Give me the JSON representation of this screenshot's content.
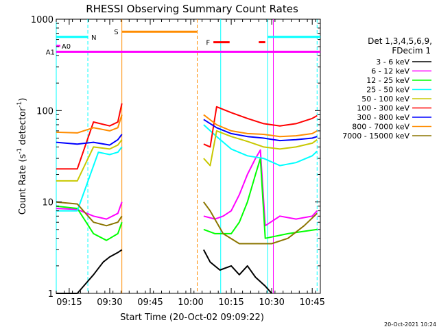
{
  "chart_data": {
    "type": "line",
    "title": "RHESSI Observing Summary Count Rates",
    "xlabel": "Start Time (20-Oct-02 09:09:22)",
    "ylabel_main": "Count Rate (s",
    "ylabel_sup1": "-1",
    "ylabel_mid": " detector",
    "ylabel_sup2": "-1",
    "ylabel_end": ")",
    "yscale": "log",
    "ylim": [
      1,
      1000
    ],
    "xlim_minutes": [
      9.17,
      10.8
    ],
    "x_ticks": [
      {
        "label": "09:15",
        "t": 9.25
      },
      {
        "label": "09:30",
        "t": 9.5
      },
      {
        "label": "09:45",
        "t": 9.75
      },
      {
        "label": "10:00",
        "t": 10.0
      },
      {
        "label": "10:15",
        "t": 10.25
      },
      {
        "label": "10:30",
        "t": 10.5
      },
      {
        "label": "10:45",
        "t": 10.75
      }
    ],
    "y_ticks": [
      {
        "label": "1",
        "v": 1
      },
      {
        "label": "10",
        "v": 10
      },
      {
        "label": "100",
        "v": 100
      },
      {
        "label": "1000",
        "v": 1000
      }
    ],
    "legend_header": [
      "Det 1,3,4,5,6,9,",
      "FDecim 1"
    ],
    "legend_placement": "right",
    "series": [
      {
        "name": "3 - 6 keV",
        "color": "#000000",
        "segments": [
          [
            [
              9.17,
              1.0
            ],
            [
              9.3,
              1.0
            ],
            [
              9.4,
              1.6
            ],
            [
              9.46,
              2.2
            ],
            [
              9.5,
              2.5
            ],
            [
              9.55,
              2.8
            ],
            [
              9.575,
              3.0
            ]
          ],
          [
            [
              10.08,
              3.0
            ],
            [
              10.12,
              2.2
            ],
            [
              10.18,
              1.8
            ],
            [
              10.25,
              2.0
            ],
            [
              10.3,
              1.6
            ],
            [
              10.35,
              2.0
            ],
            [
              10.4,
              1.5
            ],
            [
              10.46,
              1.2
            ],
            [
              10.5,
              1.0
            ]
          ]
        ]
      },
      {
        "name": "6 - 12 keV",
        "color": "#ff00ff",
        "segments": [
          [
            [
              9.17,
              8.5
            ],
            [
              9.3,
              8.3
            ],
            [
              9.4,
              7.0
            ],
            [
              9.48,
              6.5
            ],
            [
              9.55,
              7.5
            ],
            [
              9.575,
              10.0
            ]
          ],
          [
            [
              10.08,
              7.0
            ],
            [
              10.15,
              6.5
            ],
            [
              10.2,
              7.0
            ],
            [
              10.25,
              8.0
            ],
            [
              10.3,
              12.0
            ],
            [
              10.35,
              20.0
            ],
            [
              10.4,
              30.0
            ],
            [
              10.43,
              37.0
            ],
            [
              10.46,
              5.5
            ],
            [
              10.55,
              7.0
            ],
            [
              10.65,
              6.5
            ],
            [
              10.75,
              7.0
            ],
            [
              10.78,
              8.0
            ]
          ]
        ]
      },
      {
        "name": "12 - 25 keV",
        "color": "#00ff00",
        "segments": [
          [
            [
              9.17,
              9.0
            ],
            [
              9.3,
              8.5
            ],
            [
              9.4,
              4.5
            ],
            [
              9.48,
              3.8
            ],
            [
              9.55,
              4.5
            ],
            [
              9.575,
              6.0
            ]
          ],
          [
            [
              10.08,
              5.0
            ],
            [
              10.15,
              4.5
            ],
            [
              10.25,
              4.5
            ],
            [
              10.3,
              6.0
            ],
            [
              10.35,
              10.0
            ],
            [
              10.4,
              20.0
            ],
            [
              10.43,
              30.0
            ],
            [
              10.46,
              4.0
            ],
            [
              10.6,
              4.5
            ],
            [
              10.78,
              5.0
            ]
          ]
        ]
      },
      {
        "name": "25 - 50 keV",
        "color": "#00ffff",
        "segments": [
          [
            [
              9.17,
              8.0
            ],
            [
              9.3,
              8.0
            ],
            [
              9.43,
              35.0
            ],
            [
              9.5,
              33.0
            ],
            [
              9.55,
              35.0
            ],
            [
              9.575,
              40.0
            ]
          ],
          [
            [
              10.08,
              70.0
            ],
            [
              10.16,
              52.0
            ],
            [
              10.25,
              38.0
            ],
            [
              10.35,
              32.0
            ],
            [
              10.45,
              30.0
            ],
            [
              10.55,
              25.0
            ],
            [
              10.65,
              27.0
            ],
            [
              10.75,
              32.0
            ],
            [
              10.78,
              36.0
            ]
          ]
        ]
      },
      {
        "name": "50 - 100 keV",
        "color": "#c8c800",
        "segments": [
          [
            [
              9.17,
              17.0
            ],
            [
              9.3,
              17.0
            ],
            [
              9.4,
              40.0
            ],
            [
              9.5,
              38.0
            ],
            [
              9.55,
              42.0
            ],
            [
              9.575,
              48.0
            ]
          ],
          [
            [
              10.08,
              30.0
            ],
            [
              10.12,
              25.0
            ],
            [
              10.16,
              60.0
            ],
            [
              10.25,
              52.0
            ],
            [
              10.35,
              46.0
            ],
            [
              10.45,
              40.0
            ],
            [
              10.55,
              38.0
            ],
            [
              10.65,
              40.0
            ],
            [
              10.75,
              44.0
            ],
            [
              10.78,
              48.0
            ]
          ]
        ]
      },
      {
        "name": "100 - 300 keV",
        "color": "#ff0000",
        "segments": [
          [
            [
              9.17,
              23.0
            ],
            [
              9.3,
              23.0
            ],
            [
              9.4,
              75.0
            ],
            [
              9.5,
              68.0
            ],
            [
              9.55,
              75.0
            ],
            [
              9.575,
              120.0
            ]
          ],
          [
            [
              10.08,
              43.0
            ],
            [
              10.12,
              40.0
            ],
            [
              10.16,
              110.0
            ],
            [
              10.25,
              95.0
            ],
            [
              10.35,
              82.0
            ],
            [
              10.45,
              72.0
            ],
            [
              10.55,
              68.0
            ],
            [
              10.65,
              72.0
            ],
            [
              10.75,
              82.0
            ],
            [
              10.78,
              88.0
            ]
          ]
        ]
      },
      {
        "name": "300 - 800 keV",
        "color": "#0000ff",
        "segments": [
          [
            [
              9.17,
              45.0
            ],
            [
              9.3,
              43.0
            ],
            [
              9.4,
              45.0
            ],
            [
              9.5,
              42.0
            ],
            [
              9.55,
              48.0
            ],
            [
              9.575,
              55.0
            ]
          ],
          [
            [
              10.08,
              80.0
            ],
            [
              10.16,
              65.0
            ],
            [
              10.25,
              56.0
            ],
            [
              10.35,
              52.0
            ],
            [
              10.45,
              50.0
            ],
            [
              10.55,
              47.0
            ],
            [
              10.65,
              48.0
            ],
            [
              10.75,
              50.0
            ],
            [
              10.78,
              52.0
            ]
          ]
        ]
      },
      {
        "name": "800 - 7000 keV",
        "color": "#ff8c00",
        "segments": [
          [
            [
              9.17,
              58.0
            ],
            [
              9.3,
              57.0
            ],
            [
              9.4,
              65.0
            ],
            [
              9.5,
              60.0
            ],
            [
              9.55,
              65.0
            ],
            [
              9.575,
              90.0
            ]
          ],
          [
            [
              10.08,
              90.0
            ],
            [
              10.16,
              70.0
            ],
            [
              10.25,
              60.0
            ],
            [
              10.35,
              56.0
            ],
            [
              10.45,
              55.0
            ],
            [
              10.55,
              52.0
            ],
            [
              10.65,
              53.0
            ],
            [
              10.75,
              56.0
            ],
            [
              10.78,
              60.0
            ]
          ]
        ]
      },
      {
        "name": "7000 - 15000 keV",
        "color": "#8b7500",
        "segments": [
          [
            [
              9.17,
              10.0
            ],
            [
              9.3,
              9.5
            ],
            [
              9.4,
              6.0
            ],
            [
              9.48,
              5.5
            ],
            [
              9.55,
              6.0
            ],
            [
              9.575,
              7.0
            ]
          ],
          [
            [
              10.08,
              10.0
            ],
            [
              10.12,
              8.0
            ],
            [
              10.16,
              6.0
            ],
            [
              10.2,
              4.5
            ],
            [
              10.3,
              3.5
            ],
            [
              10.4,
              3.5
            ],
            [
              10.5,
              3.5
            ],
            [
              10.6,
              4.0
            ],
            [
              10.7,
              5.5
            ],
            [
              10.78,
              7.5
            ]
          ]
        ]
      }
    ],
    "vertical_lines": [
      {
        "t": 9.17,
        "color": "#00ffff",
        "style": "solid"
      },
      {
        "t": 9.365,
        "color": "#00ffff",
        "style": "dashed"
      },
      {
        "t": 9.575,
        "color": "#ff8c00",
        "style": "solid"
      },
      {
        "t": 10.04,
        "color": "#ff8c00",
        "style": "dashed"
      },
      {
        "t": 10.185,
        "color": "#00ffff",
        "style": "solid"
      },
      {
        "t": 10.475,
        "color": "#00ffff",
        "style": "solid"
      },
      {
        "t": 10.51,
        "color": "#ff00ff",
        "style": "solid"
      },
      {
        "t": 10.78,
        "color": "#00ffff",
        "style": "dashed"
      }
    ],
    "flag_bars": [
      {
        "label": "N",
        "color": "#00ffff",
        "level": 640,
        "segments": [
          [
            9.17,
            9.365
          ],
          [
            10.475,
            10.8
          ]
        ]
      },
      {
        "label": "S",
        "color": "#ff8c00",
        "level": 730,
        "segments": [
          [
            9.575,
            10.04
          ]
        ]
      },
      {
        "label": "F",
        "color": "#ff0000",
        "level": 560,
        "segments": [
          [
            10.14,
            10.24
          ],
          [
            10.42,
            10.46
          ]
        ]
      },
      {
        "label": "A0",
        "color": "#ff00ff",
        "level": 510,
        "segments": [
          [
            9.17,
            9.195
          ]
        ]
      },
      {
        "label": "A1",
        "color": "#ff00ff",
        "level": 440,
        "segments": [
          [
            9.17,
            10.8
          ]
        ]
      }
    ]
  },
  "footer": {
    "timestamp": "20-Oct-2021 10:24"
  }
}
